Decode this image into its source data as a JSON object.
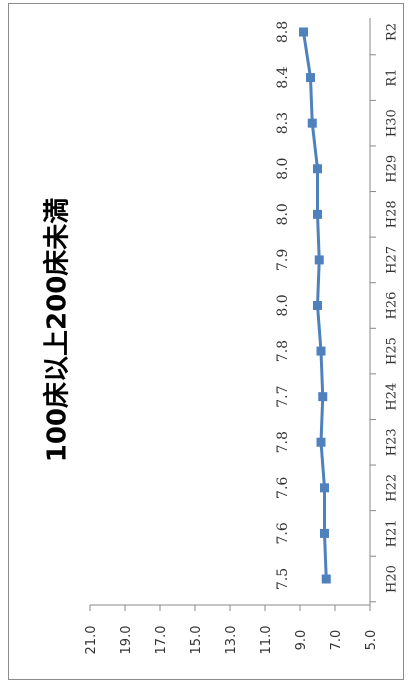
{
  "chart_data": {
    "type": "line",
    "title": "100床以上200床未満",
    "categories": [
      "H20",
      "H21",
      "H22",
      "H23",
      "H24",
      "H25",
      "H26",
      "H27",
      "H28",
      "H29",
      "H30",
      "R1",
      "R2"
    ],
    "series": [
      {
        "values": [
          7.5,
          7.6,
          7.6,
          7.8,
          7.7,
          7.8,
          8.0,
          7.9,
          8.0,
          8.0,
          8.3,
          8.4,
          8.8
        ]
      }
    ],
    "value_axis": {
      "ticks": [
        "5.0",
        "7.0",
        "9.0",
        "11.0",
        "13.0",
        "15.0",
        "17.0",
        "19.0",
        "21.0"
      ],
      "range": [
        5.0,
        21.0
      ]
    },
    "data_labels": [
      "7.5",
      "7.6",
      "7.6",
      "7.8",
      "7.7",
      "7.8",
      "8.0",
      "7.9",
      "8.0",
      "8.0",
      "8.3",
      "8.4",
      "8.8"
    ],
    "orientation": "rotated-90-clockwise",
    "grid": false,
    "legend": "none",
    "colors": {
      "series_line": "#4f81bd",
      "marker": "#4f81bd",
      "axis": "#888888"
    }
  }
}
